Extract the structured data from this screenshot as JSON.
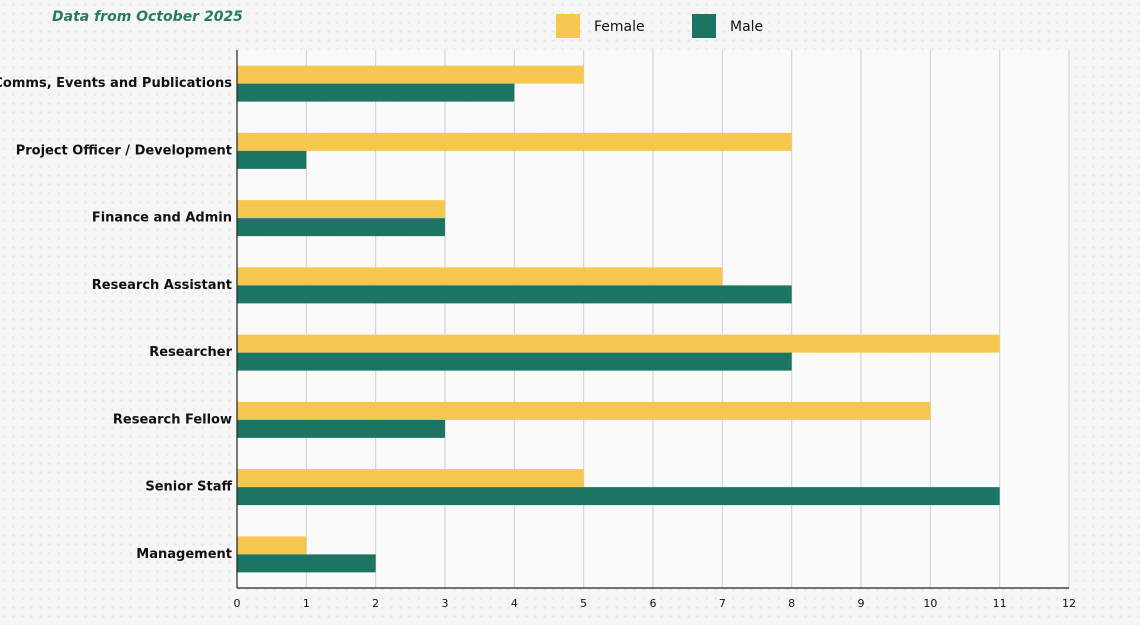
{
  "chart_data": {
    "type": "hbar",
    "subtitle": "Data from October 2025",
    "categories": [
      "Comms, Events and Publications",
      "Project Officer / Development",
      "Finance and Admin",
      "Research Assistant",
      "Researcher",
      "Research Fellow",
      "Senior Staff",
      "Management"
    ],
    "series": [
      {
        "name": "Female",
        "color": "#f5c74f",
        "values": [
          5,
          8,
          3,
          7,
          11,
          10,
          5,
          1
        ]
      },
      {
        "name": "Male",
        "color": "#1e7463",
        "values": [
          4,
          1,
          3,
          8,
          8,
          3,
          11,
          2
        ]
      }
    ],
    "xlim": [
      0,
      12
    ],
    "xticks": [
      0,
      1,
      2,
      3,
      4,
      5,
      6,
      7,
      8,
      9,
      10,
      11,
      12
    ],
    "grid": true,
    "legend": "top"
  }
}
